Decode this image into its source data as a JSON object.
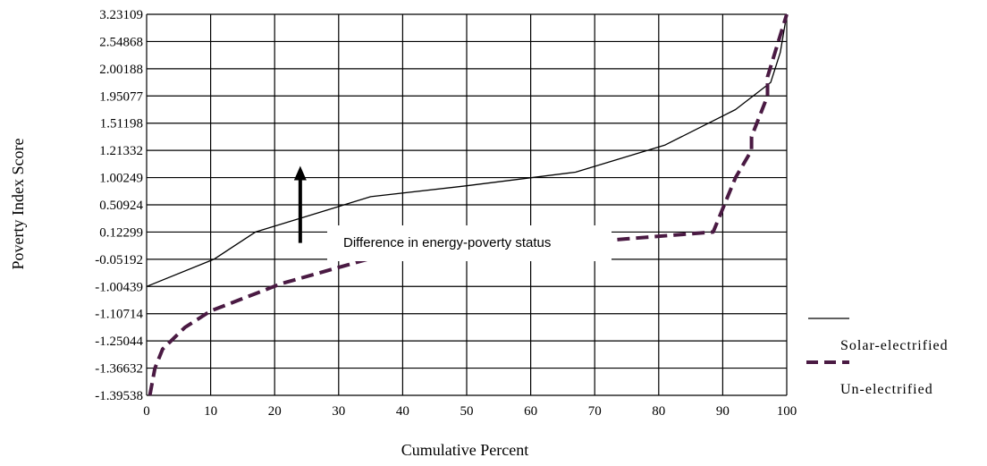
{
  "chart_data": {
    "type": "line",
    "title": "",
    "xlabel": "Cumulative Percent",
    "ylabel": "Poverty Index Score",
    "xlim": [
      0,
      100
    ],
    "x_ticks": [
      0,
      10,
      20,
      30,
      40,
      50,
      60,
      70,
      80,
      90,
      100
    ],
    "y_tick_labels": [
      "3.23109",
      "2.54868",
      "2.00188",
      "1.95077",
      "1.51198",
      "1.21332",
      "1.00249",
      "0.50924",
      "0.12299",
      "-0.05192",
      "-1.00439",
      "-1.10714",
      "-1.25044",
      "-1.36632",
      "-1.39538"
    ],
    "grid": true,
    "legend_position": "right",
    "series": [
      {
        "name": "Solar-electrified",
        "style": "solid",
        "color": "#000000",
        "x": [
          0,
          10.5,
          17,
          35,
          50,
          67,
          81,
          92,
          97.5,
          99,
          100
        ],
        "y_rank": [
          4,
          5,
          6,
          7.3,
          7.7,
          8.2,
          9.2,
          10.5,
          11.5,
          12.6,
          14
        ]
      },
      {
        "name": "Un-electrified",
        "style": "dashed",
        "color": "#4a1a43",
        "x": [
          0.5,
          1.3,
          2.5,
          6,
          10,
          21,
          34.5,
          56,
          75,
          88.5,
          92,
          94.5,
          94.5,
          97,
          97,
          100
        ],
        "y_rank": [
          0,
          1,
          1.7,
          2.5,
          3.1,
          4.1,
          5,
          5.4,
          5.75,
          6,
          8,
          9,
          9.5,
          11,
          11.7,
          14
        ]
      }
    ],
    "annotations": [
      {
        "text": "Difference in energy-poverty status",
        "arrow_x": 24,
        "arrow_from_rank": 5.6,
        "arrow_to_rank": 8.3
      }
    ]
  },
  "colors": {
    "grid": "#000000",
    "solar": "#000000",
    "unelectrified": "#4a1a43"
  }
}
